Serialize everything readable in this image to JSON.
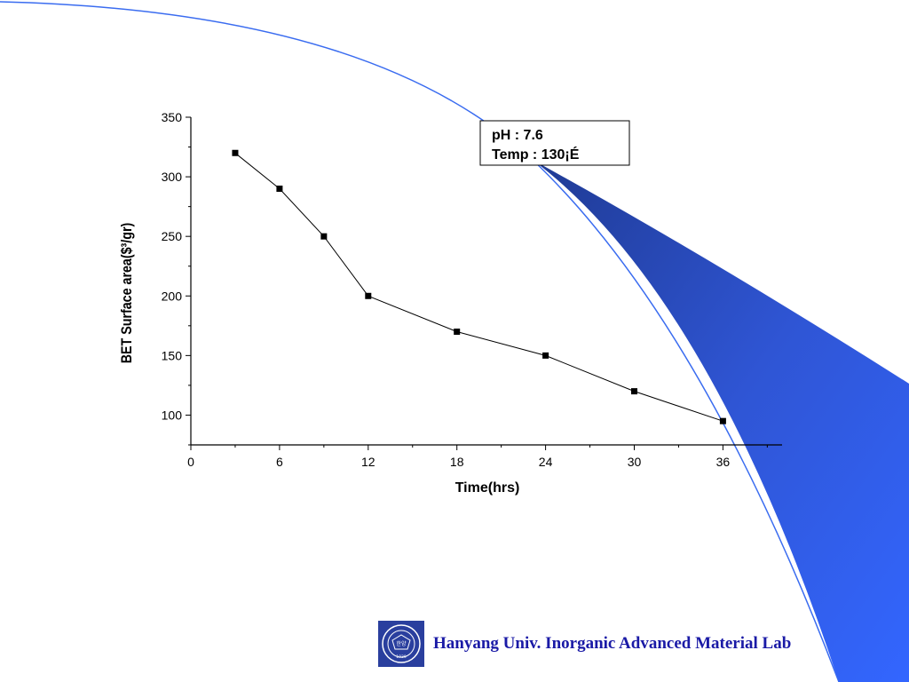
{
  "chart_data": {
    "type": "line",
    "xlabel": "Time(hrs)",
    "ylabel": "BET Surface area($³/gr)",
    "xlim": [
      0,
      40
    ],
    "ylim": [
      75,
      350
    ],
    "xticks": [
      0,
      6,
      12,
      18,
      24,
      30,
      36
    ],
    "yticks": [
      100,
      150,
      200,
      250,
      300,
      350
    ],
    "x": [
      3,
      6,
      9,
      12,
      18,
      24,
      30,
      36
    ],
    "series": [
      {
        "values": [
          320,
          290,
          250,
          200,
          170,
          150,
          120,
          95
        ]
      }
    ],
    "marker": "square",
    "line_color": "#000000",
    "grid": false,
    "annotation": {
      "lines": [
        "pH : 7.6",
        "Temp : 130¡É"
      ]
    }
  },
  "footer": {
    "text": "Hanyang Univ. Inorganic Advanced Material Lab",
    "logo_text": "한양 1939"
  },
  "colors": {
    "accent_blue": "#3366ff",
    "dark_blue": "#1f3a93",
    "footer_text": "#1a1aa6"
  }
}
